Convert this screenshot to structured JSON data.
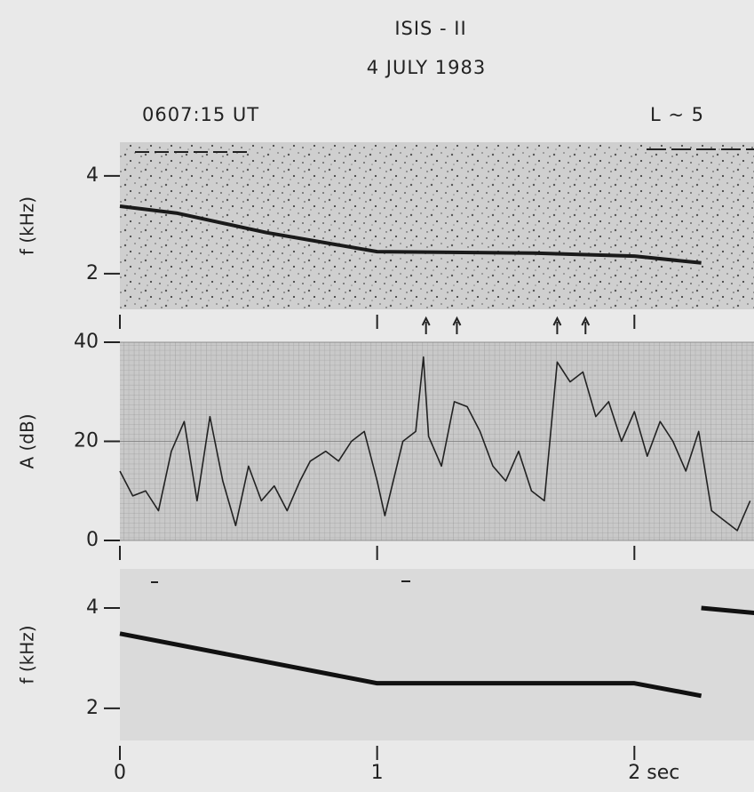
{
  "header": {
    "title": "ISIS - II",
    "date": "4 JULY 1983",
    "time": "0607:15 UT",
    "l_shell": "L ~ 5"
  },
  "chart_data": [
    {
      "type": "line",
      "ylabel": "f (kHz)",
      "color": "#1a1a1a",
      "xlim": [
        0,
        2.465
      ],
      "xticks": [
        0,
        1,
        2
      ],
      "ylim": [
        1.27,
        4.69
      ],
      "yticks": [
        2,
        4
      ],
      "x": [
        0,
        0.22,
        0.57,
        1.0,
        1.61,
        2.0,
        2.26
      ],
      "values": [
        3.38,
        3.24,
        2.84,
        2.45,
        2.42,
        2.36,
        2.22
      ],
      "arrows": [
        1.19,
        1.31,
        1.7,
        1.81
      ]
    },
    {
      "type": "line",
      "ylabel": "A (dB)",
      "color": "#222222",
      "grid": true,
      "xlim": [
        0,
        2.465
      ],
      "xticks": [
        0,
        1,
        2
      ],
      "ylim": [
        0,
        40
      ],
      "yticks": [
        0,
        20,
        40
      ],
      "x": [
        0,
        0.05,
        0.1,
        0.15,
        0.2,
        0.25,
        0.3,
        0.35,
        0.4,
        0.45,
        0.5,
        0.55,
        0.6,
        0.65,
        0.7,
        0.74,
        0.8,
        0.85,
        0.9,
        0.95,
        1.0,
        1.03,
        1.1,
        1.15,
        1.18,
        1.2,
        1.25,
        1.3,
        1.35,
        1.4,
        1.45,
        1.5,
        1.55,
        1.6,
        1.65,
        1.7,
        1.75,
        1.8,
        1.85,
        1.9,
        1.95,
        2.0,
        2.05,
        2.1,
        2.15,
        2.2,
        2.25,
        2.3,
        2.35,
        2.4,
        2.45
      ],
      "values": [
        14,
        9,
        10,
        6,
        18,
        24,
        8,
        25,
        12,
        3,
        15,
        8,
        11,
        6,
        12,
        16,
        18,
        16,
        20,
        22,
        12,
        5,
        20,
        22,
        37,
        21,
        15,
        28,
        27,
        22,
        15,
        12,
        18,
        10,
        8,
        36,
        32,
        34,
        25,
        28,
        20,
        26,
        17,
        24,
        20,
        14,
        22,
        6,
        4,
        2,
        8
      ]
    },
    {
      "type": "line",
      "ylabel": "f (kHz)",
      "color": "#111111",
      "xlim": [
        0,
        2.465
      ],
      "xticks": [
        0,
        1,
        {
          "value": 2,
          "label": "2 sec"
        }
      ],
      "ylim": [
        1.36,
        4.78
      ],
      "yticks": [
        2,
        4
      ],
      "x": [
        0,
        1.0,
        2.0,
        2.26,
        2.26,
        2.26,
        2.47
      ],
      "values": [
        3.49,
        2.5,
        2.5,
        2.25,
        null,
        4.0,
        3.9
      ]
    }
  ]
}
